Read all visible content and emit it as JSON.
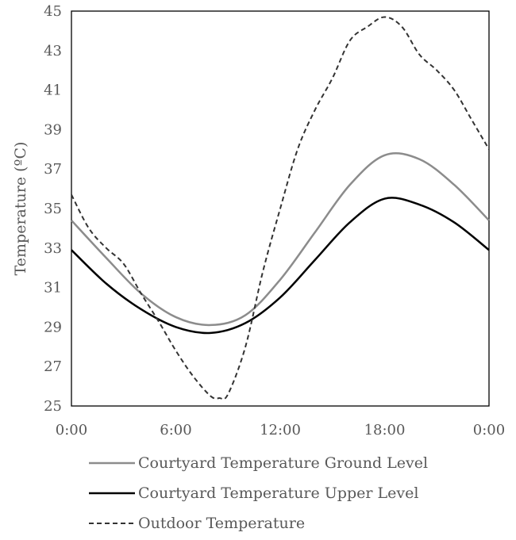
{
  "chart_data": {
    "type": "line",
    "title": "",
    "xlabel": "",
    "ylabel": "Temperature (ºC)",
    "xlim": [
      0,
      24
    ],
    "ylim": [
      25,
      45
    ],
    "x_ticks": [
      "0:00",
      "6:00",
      "12:00",
      "18:00",
      "0:00"
    ],
    "y_ticks": [
      "25",
      "27",
      "29",
      "31",
      "33",
      "35",
      "37",
      "39",
      "41",
      "43",
      "45"
    ],
    "grid": false,
    "legend_position": "bottom",
    "series": [
      {
        "name": "Courtyard Temperature Ground Level",
        "color": "#8c8c8c",
        "style": "solid",
        "x": [
          0,
          2,
          4,
          6,
          8,
          10,
          12,
          14,
          16,
          18,
          20,
          22,
          24
        ],
        "values": [
          34.4,
          32.5,
          30.7,
          29.5,
          29.1,
          29.6,
          31.4,
          33.8,
          36.2,
          37.7,
          37.5,
          36.2,
          34.4
        ]
      },
      {
        "name": "Courtyard Temperature Upper Level",
        "color": "#000000",
        "style": "solid",
        "x": [
          0,
          2,
          4,
          6,
          8,
          10,
          12,
          14,
          16,
          18,
          20,
          22,
          24
        ],
        "values": [
          32.9,
          31.2,
          29.9,
          29.0,
          28.7,
          29.2,
          30.5,
          32.4,
          34.3,
          35.5,
          35.2,
          34.3,
          32.9
        ]
      },
      {
        "name": "Outdoor Temperature",
        "color": "#333333",
        "style": "dashed",
        "x": [
          0,
          1,
          2,
          3,
          4,
          5,
          6,
          7,
          8,
          8.5,
          9,
          10,
          11,
          12,
          13,
          14,
          15,
          16,
          17,
          18,
          19,
          20,
          21,
          22,
          23,
          24
        ],
        "values": [
          35.7,
          34.0,
          33.0,
          32.2,
          30.7,
          29.3,
          27.8,
          26.5,
          25.5,
          25.4,
          25.6,
          28.0,
          31.8,
          35.0,
          38.0,
          40.0,
          41.6,
          43.5,
          44.2,
          44.7,
          44.2,
          42.8,
          42.0,
          41.0,
          39.5,
          38.0
        ]
      }
    ]
  }
}
